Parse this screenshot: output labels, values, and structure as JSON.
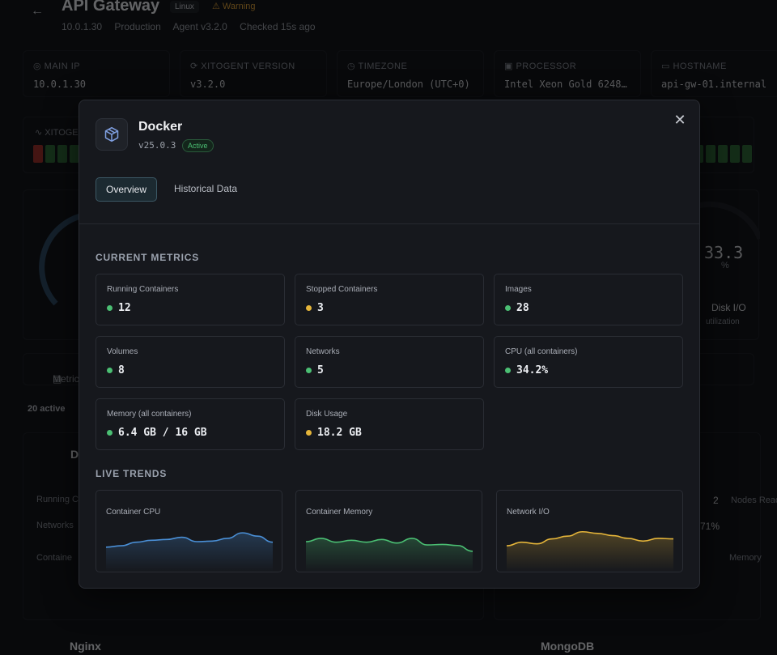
{
  "background": {
    "title": "API Gateway",
    "os_badge": "Linux",
    "warning_badge": "Warning",
    "meta": [
      "10.0.1.30",
      "Production",
      "Agent v3.2.0",
      "Checked 15s ago"
    ],
    "info_cards": [
      {
        "label": "MAIN IP",
        "value": "10.0.1.30"
      },
      {
        "label": "XITOGENT VERSION",
        "value": "v3.2.0"
      },
      {
        "label": "TIMEZONE",
        "value": "Europe/London (UTC+0)"
      },
      {
        "label": "PROCESSOR",
        "value": "Intel Xeon Gold 6248…"
      },
      {
        "label": "HOSTNAME",
        "value": "api-gw-01.internal"
      }
    ],
    "uptime_label": "XITOGE",
    "disk_gauge": {
      "value": "33.3",
      "unit": "%",
      "label": "Disk I/O",
      "sub": "utilization"
    },
    "tabs_label": "Metric",
    "active_count": "20 active",
    "services": [
      {
        "name": "D",
        "row1": "Running Co",
        "row2": "Networks",
        "row3": "Containe"
      },
      {
        "num": "2",
        "row1": "Nodes Read",
        "row2": "71%",
        "row3": "Memory"
      }
    ],
    "footer_services": [
      "Nginx",
      "MongoDB"
    ]
  },
  "modal": {
    "title": "Docker",
    "version": "v25.0.3",
    "status": "Active",
    "tabs": [
      {
        "label": "Overview",
        "active": true
      },
      {
        "label": "Historical Data",
        "active": false
      }
    ],
    "current_metrics_title": "CURRENT METRICS",
    "metrics": [
      {
        "label": "Running Containers",
        "value": "12",
        "status": "green"
      },
      {
        "label": "Stopped Containers",
        "value": "3",
        "status": "yellow"
      },
      {
        "label": "Images",
        "value": "28",
        "status": "green"
      },
      {
        "label": "Volumes",
        "value": "8",
        "status": "green"
      },
      {
        "label": "Networks",
        "value": "5",
        "status": "green"
      },
      {
        "label": "CPU (all containers)",
        "value": "34.2%",
        "status": "green"
      },
      {
        "label": "Memory (all containers)",
        "value": "6.4 GB / 16 GB",
        "status": "green"
      },
      {
        "label": "Disk Usage",
        "value": "18.2 GB",
        "status": "yellow"
      }
    ],
    "live_trends_title": "LIVE TRENDS",
    "trends": [
      {
        "label": "Container CPU",
        "color": "#4a8fd6",
        "values": [
          0.3,
          0.35,
          0.48,
          0.55,
          0.58,
          0.66,
          0.5,
          0.52,
          0.62,
          0.82,
          0.7,
          0.48
        ]
      },
      {
        "label": "Container Memory",
        "color": "#4bbf73",
        "values": [
          0.5,
          0.62,
          0.48,
          0.55,
          0.48,
          0.58,
          0.45,
          0.62,
          0.38,
          0.4,
          0.36,
          0.15
        ]
      },
      {
        "label": "Network I/O",
        "color": "#e5b53a",
        "values": [
          0.35,
          0.48,
          0.42,
          0.6,
          0.7,
          0.86,
          0.8,
          0.72,
          0.62,
          0.52,
          0.62,
          0.6
        ]
      }
    ]
  },
  "colors": {
    "green": "#4bbf73",
    "yellow": "#e5b53a",
    "accent": "#4a8fd6"
  }
}
